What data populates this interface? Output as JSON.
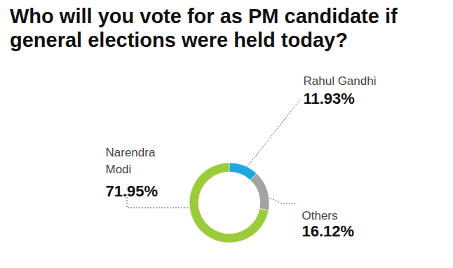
{
  "chart_data": {
    "type": "pie",
    "title": "Who will you vote for as PM candidate if general elections were held today?",
    "categories": [
      "Rahul Gandhi",
      "Others",
      "Narendra Modi"
    ],
    "values": [
      11.93,
      16.12,
      71.95
    ],
    "value_labels": [
      "11.93%",
      "16.12%",
      "71.95%"
    ],
    "colors": [
      "#1ea7e4",
      "#a3a3a3",
      "#9ccb3b"
    ],
    "data_labels": true
  }
}
